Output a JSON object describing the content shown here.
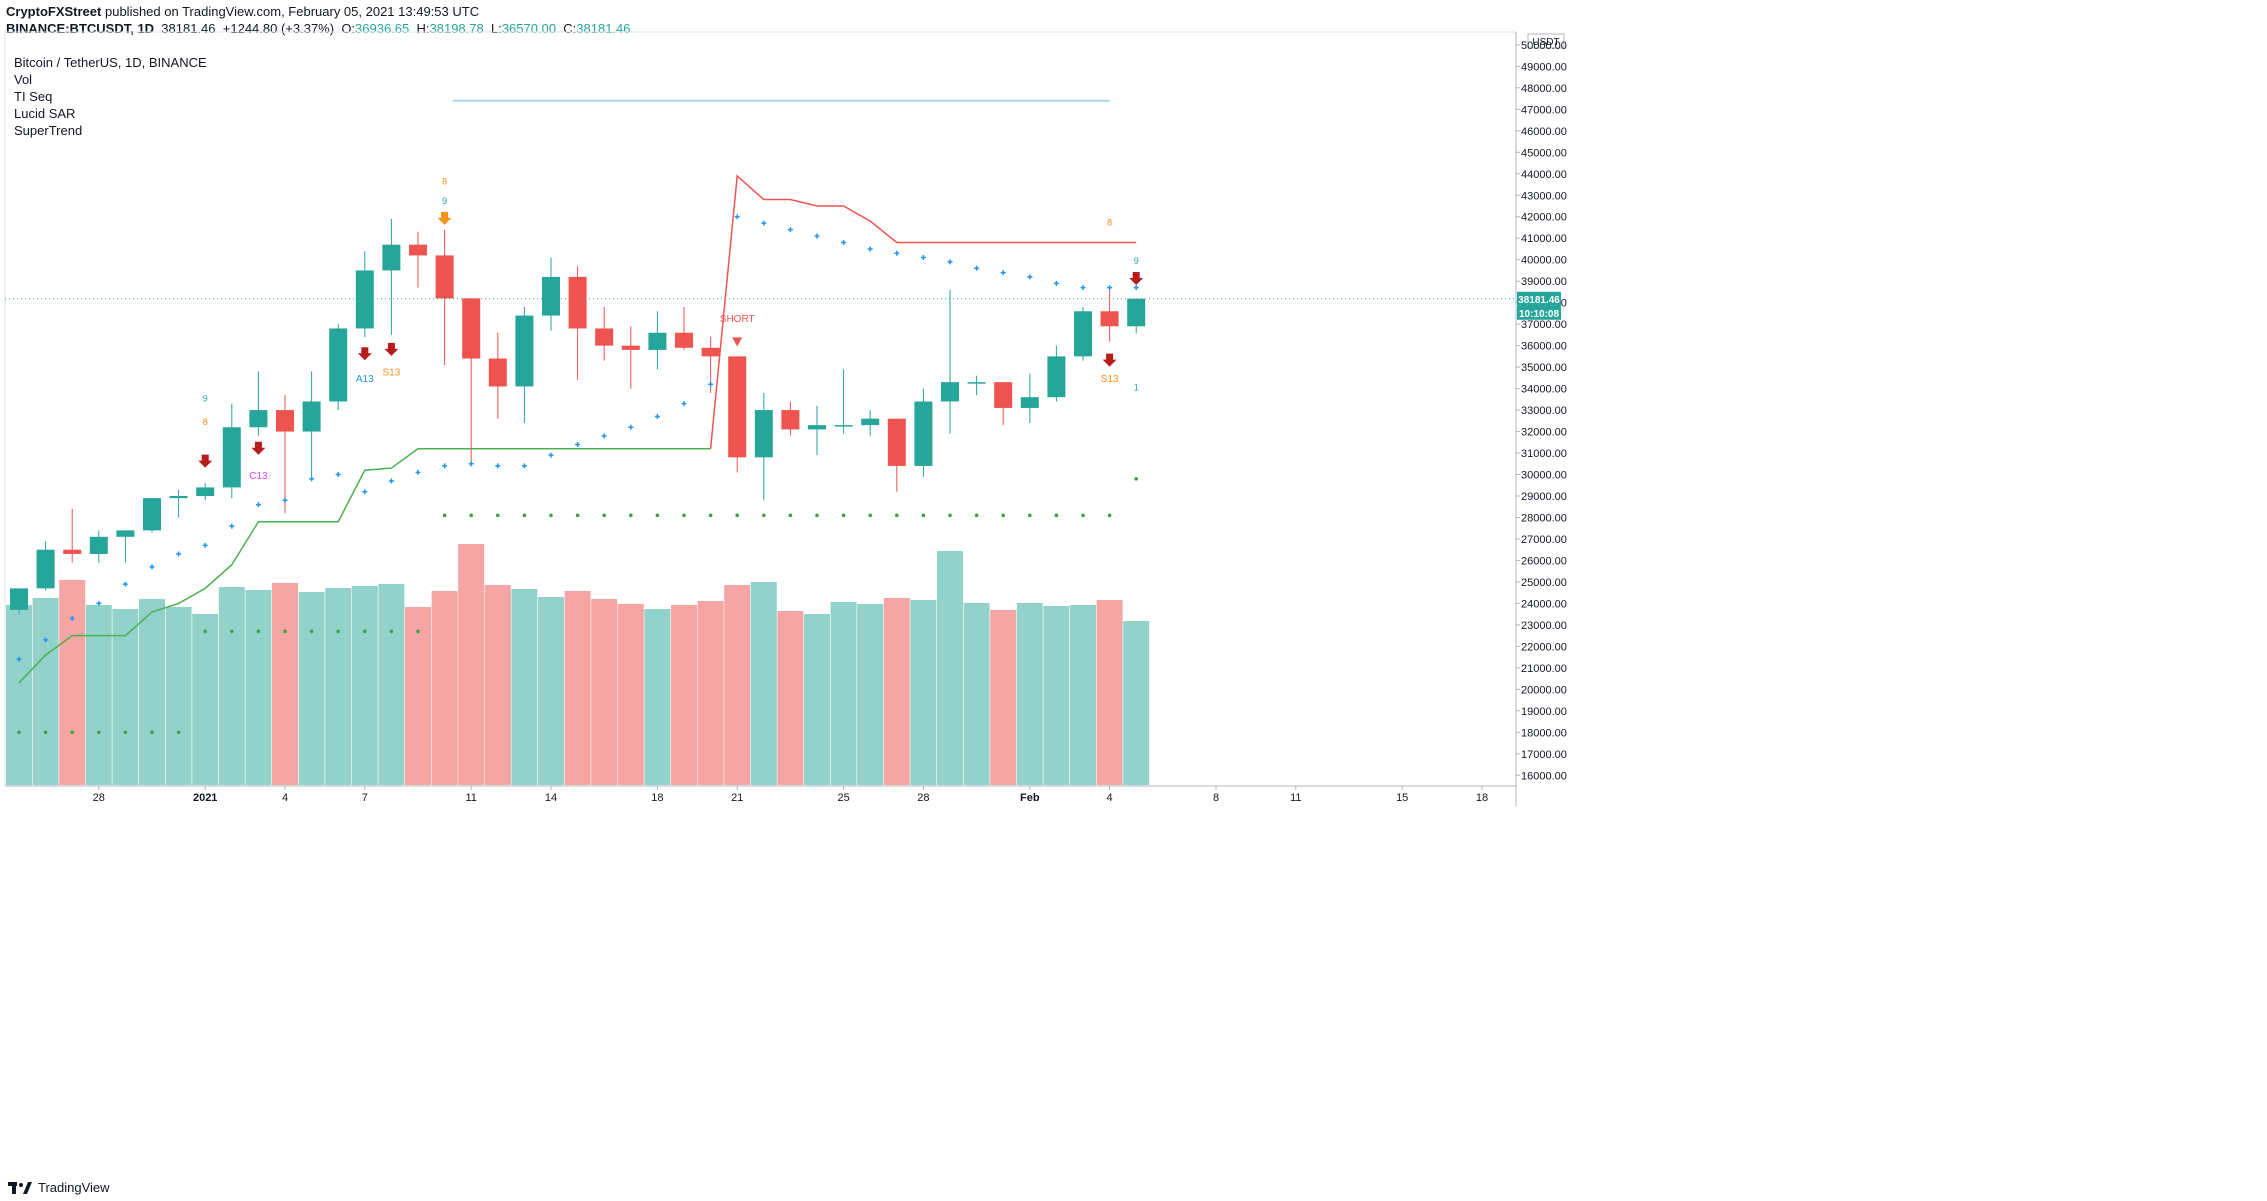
{
  "header": {
    "publisher": "CryptoFXStreet",
    "published_text": "published on TradingView.com, February 05, 2021 13:49:53 UTC"
  },
  "ohlc": {
    "symbol_line": "BINANCE:BTCUSDT, 1D",
    "last": "38181.46",
    "change": "+1244.80 (+3.37%)",
    "o_label": "O:",
    "o": "36936.65",
    "h_label": "H:",
    "h": "38198.78",
    "l_label": "L:",
    "l": "36570.00",
    "c_label": "C:",
    "c": "38181.46"
  },
  "legend": {
    "title": "Bitcoin / TetherUS, 1D, BINANCE",
    "items": [
      "Vol",
      "TI Seq",
      "Lucid SAR",
      "SuperTrend"
    ]
  },
  "footer": {
    "brand": "TradingView"
  },
  "colors": {
    "up": "#26a69a",
    "down": "#ef5350",
    "vol_up": "#93d2cb",
    "vol_down": "#f5a6a4",
    "supertrend_up": "#4caf50",
    "supertrend_down": "#f05350",
    "sar": "#2196f3",
    "resistance": "#a9d6ec",
    "signal_orange": "#f7931a",
    "signal_red": "#b71c1c"
  },
  "chart_data": {
    "type": "candlestick",
    "currency_label": "USDT",
    "ylim": [
      15500,
      50600
    ],
    "y_ticks": [
      "16000.00",
      "17000.00",
      "18000.00",
      "19000.00",
      "20000.00",
      "21000.00",
      "22000.00",
      "23000.00",
      "24000.00",
      "25000.00",
      "26000.00",
      "27000.00",
      "28000.00",
      "29000.00",
      "30000.00",
      "31000.00",
      "32000.00",
      "33000.00",
      "34000.00",
      "35000.00",
      "36000.00",
      "37000.00",
      "38000.00",
      "39000.00",
      "40000.00",
      "41000.00",
      "42000.00",
      "43000.00",
      "44000.00",
      "45000.00",
      "46000.00",
      "47000.00",
      "48000.00",
      "49000.00",
      "50000.00"
    ],
    "x_ticks": [
      {
        "i": 3,
        "label": "28"
      },
      {
        "i": 7,
        "label": "2021"
      },
      {
        "i": 10,
        "label": "4"
      },
      {
        "i": 13,
        "label": "7"
      },
      {
        "i": 17,
        "label": "11"
      },
      {
        "i": 20,
        "label": "14"
      },
      {
        "i": 24,
        "label": "18"
      },
      {
        "i": 27,
        "label": "21"
      },
      {
        "i": 31,
        "label": "25"
      },
      {
        "i": 34,
        "label": "28"
      },
      {
        "i": 38,
        "label": "Feb"
      },
      {
        "i": 41,
        "label": "4"
      },
      {
        "i": 45,
        "label": "8"
      },
      {
        "i": 48,
        "label": "11"
      },
      {
        "i": 52,
        "label": "15"
      },
      {
        "i": 55,
        "label": "18"
      }
    ],
    "candles": [
      {
        "o": 23700,
        "h": 24600,
        "l": 23500,
        "c": 24700
      },
      {
        "o": 24700,
        "h": 26900,
        "l": 24600,
        "c": 26500
      },
      {
        "o": 26500,
        "h": 28400,
        "l": 25900,
        "c": 26300
      },
      {
        "o": 26300,
        "h": 27400,
        "l": 25900,
        "c": 27100
      },
      {
        "o": 27100,
        "h": 27400,
        "l": 25900,
        "c": 27400
      },
      {
        "o": 27400,
        "h": 28900,
        "l": 27300,
        "c": 28900
      },
      {
        "o": 28900,
        "h": 29300,
        "l": 28000,
        "c": 29000
      },
      {
        "o": 29000,
        "h": 29600,
        "l": 28800,
        "c": 29400
      },
      {
        "o": 29400,
        "h": 33300,
        "l": 28900,
        "c": 32200
      },
      {
        "o": 32200,
        "h": 34800,
        "l": 31800,
        "c": 33000
      },
      {
        "o": 33000,
        "h": 33700,
        "l": 28200,
        "c": 32000
      },
      {
        "o": 32000,
        "h": 34800,
        "l": 29900,
        "c": 33400
      },
      {
        "o": 33400,
        "h": 37000,
        "l": 33000,
        "c": 36800
      },
      {
        "o": 36800,
        "h": 40400,
        "l": 36400,
        "c": 39500
      },
      {
        "o": 39500,
        "h": 41900,
        "l": 36500,
        "c": 40700
      },
      {
        "o": 40700,
        "h": 41300,
        "l": 38700,
        "c": 40200
      },
      {
        "o": 40200,
        "h": 41400,
        "l": 35100,
        "c": 38200
      },
      {
        "o": 38200,
        "h": 38200,
        "l": 30400,
        "c": 35400
      },
      {
        "o": 35400,
        "h": 36600,
        "l": 32600,
        "c": 34100
      },
      {
        "o": 34100,
        "h": 37800,
        "l": 32400,
        "c": 37400
      },
      {
        "o": 37400,
        "h": 40100,
        "l": 36700,
        "c": 39200
      },
      {
        "o": 39200,
        "h": 39700,
        "l": 34400,
        "c": 36800
      },
      {
        "o": 36800,
        "h": 37800,
        "l": 35300,
        "c": 36000
      },
      {
        "o": 36000,
        "h": 36900,
        "l": 34000,
        "c": 35800
      },
      {
        "o": 35800,
        "h": 37600,
        "l": 34900,
        "c": 36600
      },
      {
        "o": 36600,
        "h": 37800,
        "l": 35800,
        "c": 35900
      },
      {
        "o": 35900,
        "h": 36400,
        "l": 33800,
        "c": 35500
      },
      {
        "o": 35500,
        "h": 35500,
        "l": 30100,
        "c": 30800
      },
      {
        "o": 30800,
        "h": 33800,
        "l": 28800,
        "c": 33000
      },
      {
        "o": 33000,
        "h": 33400,
        "l": 31800,
        "c": 32100
      },
      {
        "o": 32100,
        "h": 33200,
        "l": 30900,
        "c": 32300
      },
      {
        "o": 32300,
        "h": 34900,
        "l": 31900,
        "c": 32300
      },
      {
        "o": 32300,
        "h": 33000,
        "l": 31800,
        "c": 32600
      },
      {
        "o": 32600,
        "h": 32600,
        "l": 29200,
        "c": 30400
      },
      {
        "o": 30400,
        "h": 34000,
        "l": 29900,
        "c": 33400
      },
      {
        "o": 33400,
        "h": 38600,
        "l": 31900,
        "c": 34300
      },
      {
        "o": 34300,
        "h": 34600,
        "l": 33700,
        "c": 34300
      },
      {
        "o": 34300,
        "h": 34300,
        "l": 32300,
        "c": 33100
      },
      {
        "o": 33100,
        "h": 34700,
        "l": 32400,
        "c": 33600
      },
      {
        "o": 33600,
        "h": 36000,
        "l": 33400,
        "c": 35500
      },
      {
        "o": 35500,
        "h": 37800,
        "l": 35300,
        "c": 37600
      },
      {
        "o": 37600,
        "h": 38700,
        "l": 36200,
        "c": 36900
      },
      {
        "o": 36900,
        "h": 38198,
        "l": 36570,
        "c": 38181
      }
    ],
    "volume": [
      18.0,
      18.7,
      20.5,
      18.0,
      17.6,
      18.6,
      17.8,
      17.1,
      19.8,
      19.5,
      20.2,
      19.3,
      19.7,
      19.9,
      20.1,
      17.8,
      19.4,
      24.1,
      20.0,
      19.6,
      18.8,
      19.4,
      18.6,
      18.1,
      17.6,
      18.0,
      18.4,
      20.0,
      20.3,
      17.4,
      17.1,
      18.3,
      18.1,
      18.7,
      18.5,
      23.4,
      18.2,
      17.5,
      18.2,
      17.9,
      18.0,
      18.5,
      16.4
    ],
    "volume_scale_max": 26,
    "supertrend": {
      "up": [
        [
          0,
          20300
        ],
        [
          1,
          21600
        ],
        [
          2,
          22500
        ],
        [
          3,
          22500
        ],
        [
          4,
          22500
        ],
        [
          5,
          23600
        ],
        [
          6,
          24000
        ],
        [
          7,
          24700
        ],
        [
          8,
          25800
        ],
        [
          9,
          27800
        ],
        [
          10,
          27800
        ],
        [
          11,
          27800
        ],
        [
          12,
          27800
        ],
        [
          13,
          30200
        ],
        [
          14,
          30300
        ],
        [
          15,
          31200
        ],
        [
          16,
          31200
        ],
        [
          17,
          31200
        ],
        [
          18,
          31200
        ],
        [
          19,
          31200
        ],
        [
          20,
          31200
        ],
        [
          21,
          31200
        ],
        [
          22,
          31200
        ],
        [
          23,
          31200
        ],
        [
          24,
          31200
        ],
        [
          25,
          31200
        ],
        [
          26,
          31200
        ]
      ],
      "down": [
        [
          26,
          31200
        ],
        [
          27,
          43900
        ],
        [
          28,
          42800
        ],
        [
          29,
          42800
        ],
        [
          30,
          42500
        ],
        [
          31,
          42500
        ],
        [
          32,
          41800
        ],
        [
          33,
          40800
        ],
        [
          34,
          40800
        ],
        [
          35,
          40800
        ],
        [
          36,
          40800
        ],
        [
          37,
          40800
        ],
        [
          38,
          40800
        ],
        [
          39,
          40800
        ],
        [
          40,
          40800
        ],
        [
          41,
          40800
        ],
        [
          42,
          40800
        ]
      ]
    },
    "sar": [
      [
        0,
        21400
      ],
      [
        1,
        22300
      ],
      [
        2,
        23300
      ],
      [
        3,
        24000
      ],
      [
        4,
        24900
      ],
      [
        5,
        25700
      ],
      [
        6,
        26300
      ],
      [
        7,
        26700
      ],
      [
        8,
        27600
      ],
      [
        9,
        28600
      ],
      [
        10,
        28800
      ],
      [
        11,
        29800
      ],
      [
        12,
        30000
      ],
      [
        13,
        29200
      ],
      [
        14,
        29700
      ],
      [
        15,
        30100
      ],
      [
        16,
        30400
      ],
      [
        17,
        30500
      ],
      [
        18,
        30400
      ],
      [
        19,
        30400
      ],
      [
        20,
        30900
      ],
      [
        21,
        31400
      ],
      [
        22,
        31800
      ],
      [
        23,
        32200
      ],
      [
        24,
        32700
      ],
      [
        25,
        33300
      ],
      [
        26,
        34200
      ],
      [
        27,
        42000
      ],
      [
        28,
        41700
      ],
      [
        29,
        41400
      ],
      [
        30,
        41100
      ],
      [
        31,
        40800
      ],
      [
        32,
        40500
      ],
      [
        33,
        40300
      ],
      [
        34,
        40100
      ],
      [
        35,
        39900
      ],
      [
        36,
        39600
      ],
      [
        37,
        39400
      ],
      [
        38,
        39200
      ],
      [
        39,
        38900
      ],
      [
        40,
        38700
      ],
      [
        41,
        38700
      ],
      [
        42,
        38700
      ]
    ],
    "green_dots_upper": [
      [
        7,
        22700
      ],
      [
        8,
        22700
      ],
      [
        9,
        22700
      ],
      [
        10,
        22700
      ],
      [
        11,
        22700
      ],
      [
        12,
        22700
      ],
      [
        13,
        22700
      ],
      [
        14,
        22700
      ],
      [
        15,
        22700
      ],
      [
        16,
        28100
      ],
      [
        17,
        28100
      ],
      [
        18,
        28100
      ],
      [
        19,
        28100
      ],
      [
        20,
        28100
      ],
      [
        21,
        28100
      ],
      [
        22,
        28100
      ],
      [
        23,
        28100
      ],
      [
        24,
        28100
      ],
      [
        25,
        28100
      ],
      [
        26,
        28100
      ],
      [
        27,
        28100
      ],
      [
        28,
        28100
      ],
      [
        29,
        28100
      ],
      [
        30,
        28100
      ],
      [
        31,
        28100
      ],
      [
        32,
        28100
      ],
      [
        33,
        28100
      ],
      [
        34,
        28100
      ],
      [
        35,
        28100
      ],
      [
        36,
        28100
      ],
      [
        37,
        28100
      ],
      [
        38,
        28100
      ],
      [
        39,
        28100
      ],
      [
        40,
        28100
      ],
      [
        41,
        28100
      ],
      [
        42,
        29800
      ]
    ],
    "green_dots_lower": [
      [
        0,
        18000
      ],
      [
        1,
        18000
      ],
      [
        2,
        18000
      ],
      [
        3,
        18000
      ],
      [
        4,
        18000
      ],
      [
        5,
        18000
      ],
      [
        6,
        18000
      ]
    ],
    "resistance_line": {
      "from_i": 16.3,
      "to_i": 41.0,
      "y": 47400
    },
    "last_price_label": "38181.46",
    "countdown_label": "10:10:08",
    "last_price": 38181.46,
    "annotations": [
      {
        "i": 7,
        "text": "9",
        "y": 33400,
        "color": "#26a69a"
      },
      {
        "i": 7,
        "text": "8",
        "y": 32300,
        "color": "#f7931a"
      },
      {
        "i": 9,
        "text": "C13",
        "y": 29800,
        "color": "#e040fb"
      },
      {
        "i": 13,
        "text": "A13",
        "y": 34300,
        "color": "#2196f3"
      },
      {
        "i": 14,
        "text": "S13",
        "y": 34600,
        "color": "#f7931a"
      },
      {
        "i": 16,
        "text": "9",
        "y": 42600,
        "color": "#26a69a"
      },
      {
        "i": 16,
        "text": "8",
        "y": 43500,
        "color": "#f7931a"
      },
      {
        "i": 27,
        "text": "SHORT",
        "y": 37100,
        "color": "#f05350"
      },
      {
        "i": 41,
        "text": "8",
        "y": 41600,
        "color": "#f7931a"
      },
      {
        "i": 41,
        "text": "S13",
        "y": 34300,
        "color": "#f7931a"
      },
      {
        "i": 42,
        "text": "9",
        "y": 39800,
        "color": "#26a69a"
      },
      {
        "i": 42,
        "text": "1",
        "y": 33900,
        "color": "#26a69a"
      }
    ],
    "arrows": [
      {
        "i": 7,
        "y": 30600,
        "color": "#b71c1c"
      },
      {
        "i": 9,
        "y": 31200,
        "color": "#b71c1c"
      },
      {
        "i": 13,
        "y": 35600,
        "color": "#b71c1c"
      },
      {
        "i": 14,
        "y": 35800,
        "color": "#b71c1c"
      },
      {
        "i": 16,
        "y": 41900,
        "color": "#f7931a"
      },
      {
        "i": 41,
        "y": 35300,
        "color": "#b71c1c"
      },
      {
        "i": 42,
        "y": 39100,
        "color": "#b71c1c"
      }
    ]
  }
}
